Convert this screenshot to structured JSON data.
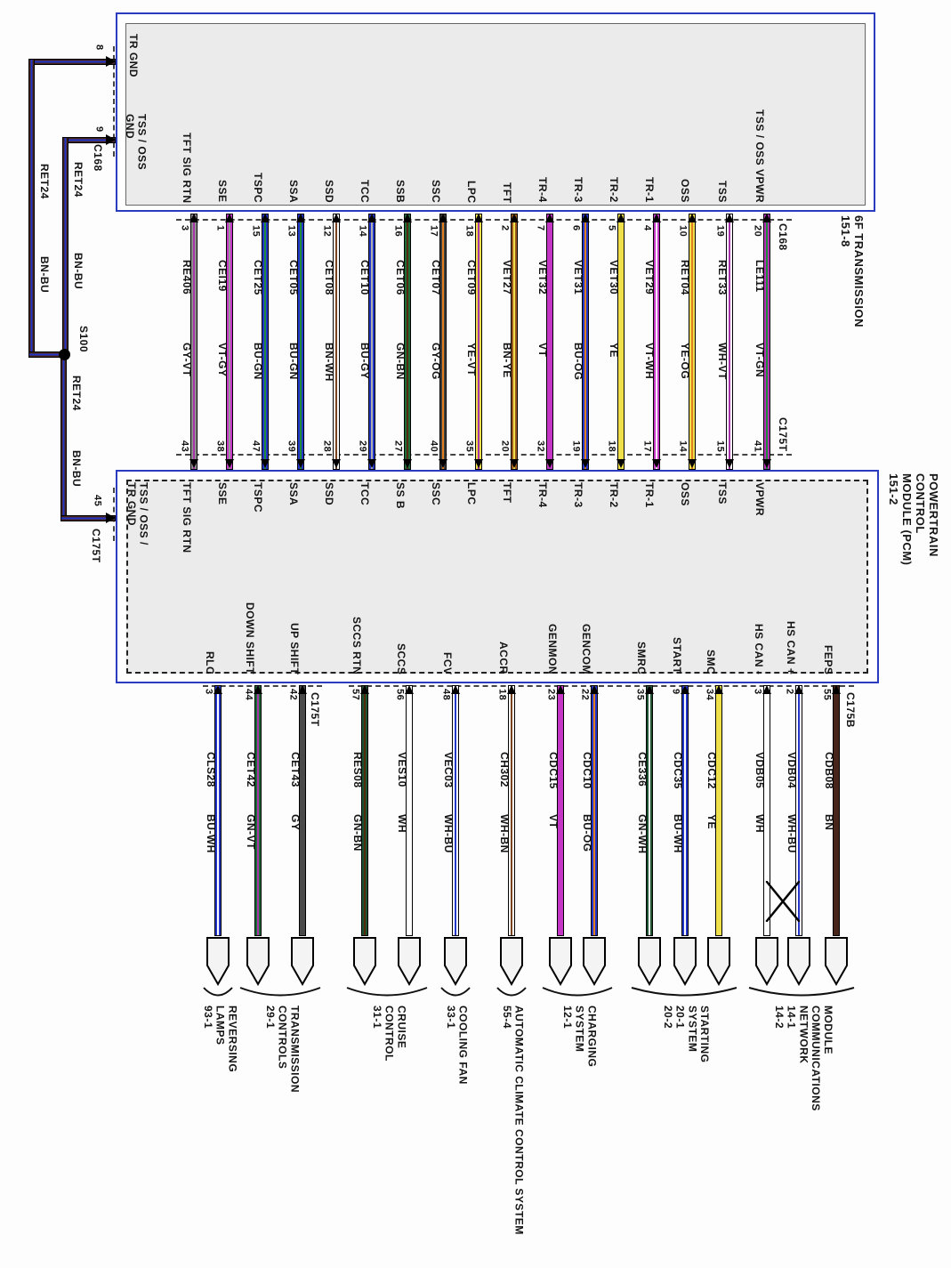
{
  "page": {
    "background": "#fdfdfd",
    "box_border_color": "#2a3bbf",
    "box_fill_color": "#ebebeb"
  },
  "transmission": {
    "title": "6F TRANSMISSION\n151-8",
    "connector": "C168"
  },
  "pcm": {
    "title": "POWERTRAIN\nCONTROL\nMODULE (PCM)\n151-2",
    "top_connector": "C175T",
    "bottom_connector_left": "C175T",
    "bottom_connector_right": "C175B"
  },
  "left_harness": {
    "pin8": {
      "pin": "8",
      "label": "TR GND"
    },
    "pin9": {
      "pin": "9",
      "connector": "C168",
      "label": "TSS / OSS\nGND"
    },
    "pin45": {
      "pin": "45",
      "connector": "C175T",
      "label": "TSS / OSS /\nTR GND"
    },
    "splice": "S100",
    "wire_labels": [
      {
        "circuit": "RET24",
        "color": "BN-BU"
      },
      {
        "circuit": "RET24",
        "color": "BN-BU"
      },
      {
        "circuit": "RET24",
        "color": "BN-BU"
      }
    ],
    "wire_base": "#47251a",
    "wire_stripe": "#2336c9"
  },
  "trans_to_pcm_wires": [
    {
      "function": "TFT SIG RTN",
      "trans_pin": "3",
      "circuit": "RE406",
      "color": "GY-VT",
      "pcm_pin": "43",
      "pcm_function": "TFT SIG RTN",
      "base": "#8f8f8f",
      "stripe": "#a836a8"
    },
    {
      "function": "SSE",
      "trans_pin": "1",
      "circuit": "CEI19",
      "color": "VT-GY",
      "pcm_pin": "38",
      "pcm_function": "SSE",
      "base": "#c437c4",
      "stripe": "#9a9a9a"
    },
    {
      "function": "TSPC",
      "trans_pin": "15",
      "circuit": "CET25",
      "color": "BU-GN",
      "pcm_pin": "47",
      "pcm_function": "TSPC",
      "base": "#2336c9",
      "stripe": "#1e8c3c"
    },
    {
      "function": "SSA",
      "trans_pin": "13",
      "circuit": "CET05",
      "color": "BU-GN",
      "pcm_pin": "39",
      "pcm_function": "SSA",
      "base": "#2336c9",
      "stripe": "#1e8c3c"
    },
    {
      "function": "SSD",
      "trans_pin": "12",
      "circuit": "CET08",
      "color": "BN-WH",
      "pcm_pin": "28",
      "pcm_function": "SSD",
      "base": "#ffffff",
      "stripe": "#7a4420"
    },
    {
      "function": "TCC",
      "trans_pin": "14",
      "circuit": "CET10",
      "color": "BU-GY",
      "pcm_pin": "29",
      "pcm_function": "TCC",
      "base": "#2336c9",
      "stripe": "#b0b0b0"
    },
    {
      "function": "SSB",
      "trans_pin": "16",
      "circuit": "CET06",
      "color": "GN-BN",
      "pcm_pin": "27",
      "pcm_function": "SS B",
      "base": "#1d6b35",
      "stripe": "#53290f"
    },
    {
      "function": "SSC",
      "trans_pin": "17",
      "circuit": "CET07",
      "color": "GY-OG",
      "pcm_pin": "40",
      "pcm_function": "SSC",
      "base": "#3f3f3f",
      "stripe": "#e07f1f"
    },
    {
      "function": "LPC",
      "trans_pin": "18",
      "circuit": "CET09",
      "color": "YE-VT",
      "pcm_pin": "35",
      "pcm_function": "LPC",
      "base": "#efdf4a",
      "stripe": "#a836a8"
    },
    {
      "function": "TFT",
      "trans_pin": "2",
      "circuit": "VET27",
      "color": "BN-YE",
      "pcm_pin": "20",
      "pcm_function": "TFT",
      "base": "#9c5a1e",
      "stripe": "#efdf4a"
    },
    {
      "function": "TR-4",
      "trans_pin": "7",
      "circuit": "VET32",
      "color": "VT",
      "pcm_pin": "32",
      "pcm_function": "TR-4",
      "base": "#c437c4",
      "stripe": null
    },
    {
      "function": "TR-3",
      "trans_pin": "6",
      "circuit": "VET31",
      "color": "BU-OG",
      "pcm_pin": "19",
      "pcm_function": "TR-3",
      "base": "#2336c9",
      "stripe": "#e07f1f"
    },
    {
      "function": "TR-2",
      "trans_pin": "5",
      "circuit": "VET30",
      "color": "YE",
      "pcm_pin": "18",
      "pcm_function": "TR-2",
      "base": "#efdf4a",
      "stripe": null
    },
    {
      "function": "TR-1",
      "trans_pin": "4",
      "circuit": "VET29",
      "color": "VT-WH",
      "pcm_pin": "17",
      "pcm_function": "TR-1",
      "base": "#c437c4",
      "stripe": "#ffffff"
    },
    {
      "function": "OSS",
      "trans_pin": "10",
      "circuit": "RET04",
      "color": "YE-OG",
      "pcm_pin": "14",
      "pcm_function": "OSS",
      "base": "#efdf4a",
      "stripe": "#e07f1f"
    },
    {
      "function": "TSS",
      "trans_pin": "19",
      "circuit": "RET33",
      "color": "WH-VT",
      "pcm_pin": "15",
      "pcm_function": "TSS",
      "base": "#ffffff",
      "stripe": "#a836a8"
    },
    {
      "function": "TSS / OSS VPWR",
      "trans_pin": "20",
      "circuit": "LE111",
      "color": "VT-GN",
      "pcm_pin": "41",
      "pcm_function": "VPWR",
      "base": "#b434b4",
      "stripe": "#1e8c3c"
    }
  ],
  "pcm_output_wires": [
    {
      "function": "RLC",
      "pin": "3",
      "circuit": "CLS28",
      "color": "BU-WH",
      "base": "#2336c9",
      "stripe": "#ffffff"
    },
    {
      "function": "DOWN SHIFT",
      "pin": "44",
      "circuit": "CET42",
      "color": "GN-VT",
      "base": "#1d6b35",
      "stripe": "#a836a8"
    },
    {
      "function": "UP SHIFT",
      "pin": "42",
      "circuit": "CET43",
      "color": "GY",
      "base": "#4a4a4a",
      "stripe": null
    },
    {
      "function": "SCCS RTN",
      "pin": "57",
      "circuit": "RES08",
      "color": "GN-BN",
      "base": "#1d5230",
      "stripe": "#53290f"
    },
    {
      "function": "SCCS",
      "pin": "56",
      "circuit": "VES10",
      "color": "WH",
      "base": "#ffffff",
      "stripe": null
    },
    {
      "function": "FCV",
      "pin": "48",
      "circuit": "VEC03",
      "color": "WH-BU",
      "base": "#ffffff",
      "stripe": "#2336c9"
    },
    {
      "function": "ACCR",
      "pin": "18",
      "circuit": "CH302",
      "color": "WH-BN",
      "base": "#ffffff",
      "stripe": "#7a4420"
    },
    {
      "function": "GENMON",
      "pin": "23",
      "circuit": "CDC15",
      "color": "VT",
      "base": "#c437c4",
      "stripe": null
    },
    {
      "function": "GENCOM",
      "pin": "22",
      "circuit": "CDC10",
      "color": "BU-OG",
      "base": "#2336c9",
      "stripe": "#e07f1f"
    },
    {
      "function": "SMRC",
      "pin": "35",
      "circuit": "CE336",
      "color": "GN-WH",
      "base": "#1d5230",
      "stripe": "#ffffff"
    },
    {
      "function": "START",
      "pin": "9",
      "circuit": "CDC35",
      "color": "BU-WH",
      "base": "#2336c9",
      "stripe": "#ffffff"
    },
    {
      "function": "SMC",
      "pin": "34",
      "circuit": "CDC12",
      "color": "YE",
      "base": "#efdf4a",
      "stripe": null
    },
    {
      "function": "HS CAN -",
      "pin": "3",
      "circuit": "VDB05",
      "color": "WH",
      "base": "#ffffff",
      "stripe": null
    },
    {
      "function": "HS CAN +",
      "pin": "2",
      "circuit": "VDB04",
      "color": "WH-BU",
      "base": "#ffffff",
      "stripe": "#2336c9"
    },
    {
      "function": "FEPS",
      "pin": "55",
      "circuit": "CDB08",
      "color": "BN",
      "base": "#47251a",
      "stripe": null
    }
  ],
  "systems": [
    {
      "label": "REVERSING\nLAMPS\n93-1"
    },
    {
      "label": "TRANSMISSION\nCONTROLS\n29-1"
    },
    {
      "label": "CRUISE\nCONTROL\n31-1"
    },
    {
      "label": "COOLING FAN\n33-1"
    },
    {
      "label": "AUTOMATIC CLIMATE CONTROL SYSTEM\n55-4"
    },
    {
      "label": "CHARGING\nSYSTEM\n12-1"
    },
    {
      "label": "STARTING\nSYSTEM\n20-1\n20-2"
    },
    {
      "label": "MODULE\nCOMMUNICATIONS\nNETWORK\n14-1\n14-2"
    }
  ]
}
